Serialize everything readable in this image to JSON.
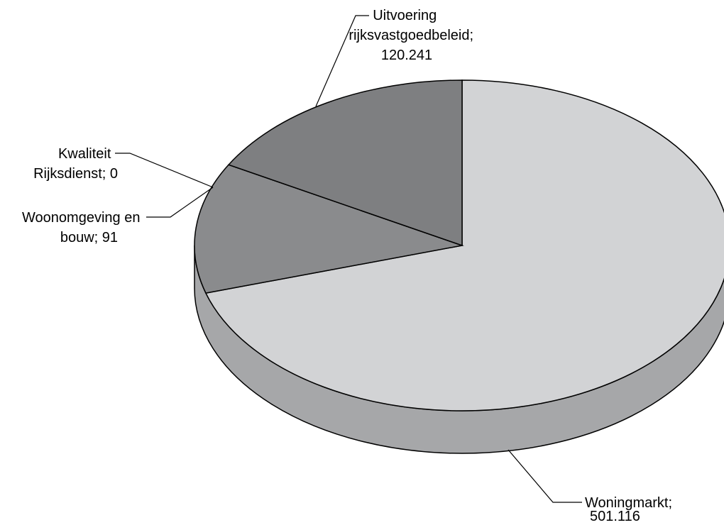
{
  "chart_data": {
    "type": "pie",
    "style": "3d",
    "title": "",
    "slices": [
      {
        "label": "Woningmarkt",
        "value": 501.116,
        "label_lines": [
          "Woningmarkt;",
          "501.116"
        ],
        "color": "#d2d3d5"
      },
      {
        "label": "Woonomgeving en bouw",
        "value": 91,
        "label_lines": [
          "Woonomgeving en",
          "bouw; 91"
        ],
        "color": "#8a8b8d"
      },
      {
        "label": "Kwaliteit Rijksdienst",
        "value": 0,
        "label_lines": [
          "Kwaliteit",
          "Rijksdienst; 0"
        ],
        "color": "#7e7f81"
      },
      {
        "label": "Uitvoering rijksvastgoedbeleid",
        "value": 120.241,
        "label_lines": [
          "Uitvoering",
          "rijksvastgoedbeleid;",
          "120.241"
        ],
        "color": "#7e7f81"
      }
    ],
    "side_color": "#a6a7a9"
  }
}
